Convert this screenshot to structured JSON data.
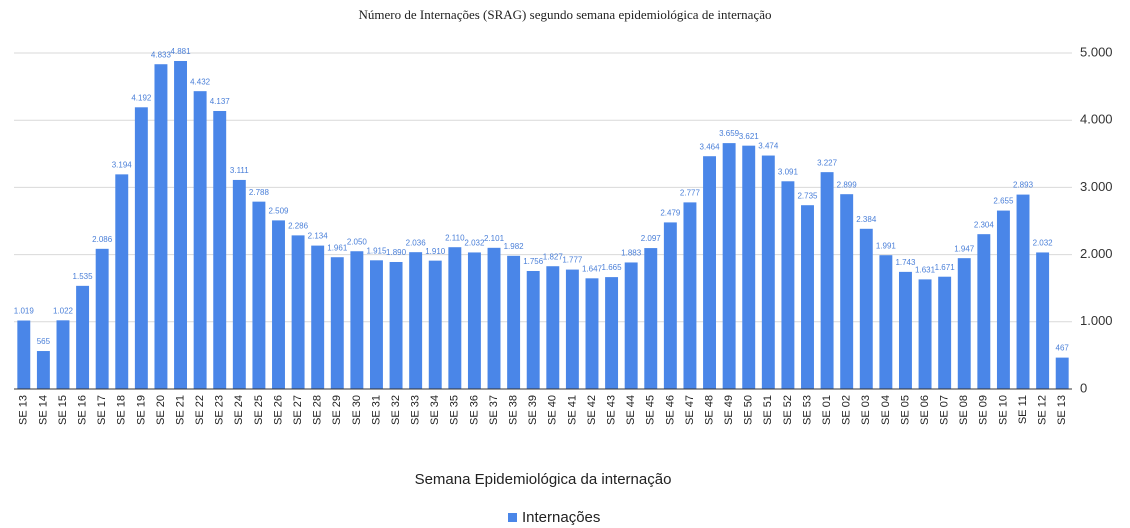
{
  "chart_data": {
    "type": "bar",
    "title": "Número de Internações (SRAG) segundo semana epidemiológica de internação",
    "x_label": "Semana Epidemiológica da internação",
    "categories": [
      "SE 13",
      "SE 14",
      "SE 15",
      "SE 16",
      "SE 17",
      "SE 18",
      "SE 19",
      "SE 20",
      "SE 21",
      "SE 22",
      "SE 23",
      "SE 24",
      "SE 25",
      "SE 26",
      "SE 27",
      "SE 28",
      "SE 29",
      "SE 30",
      "SE 31",
      "SE 32",
      "SE 33",
      "SE 34",
      "SE 35",
      "SE 36",
      "SE 37",
      "SE 38",
      "SE 39",
      "SE 40",
      "SE 41",
      "SE 42",
      "SE 43",
      "SE 44",
      "SE 45",
      "SE 46",
      "SE 47",
      "SE 48",
      "SE 49",
      "SE 50",
      "SE 51",
      "SE 52",
      "SE 53",
      "SE 01",
      "SE 02",
      "SE 03",
      "SE 04",
      "SE 05",
      "SE 06",
      "SE 07",
      "SE 08",
      "SE 09",
      "SE 10",
      "SE 11",
      "SE 12",
      "SE 13"
    ],
    "series": [
      {
        "name": "Internações",
        "color": "#4a86e8",
        "values": [
          1019,
          565,
          1022,
          1535,
          2086,
          3194,
          4192,
          4833,
          4881,
          4432,
          4137,
          3111,
          2788,
          2509,
          2286,
          2134,
          1961,
          2050,
          1915,
          1890,
          2036,
          1910,
          2110,
          2032,
          2101,
          1982,
          1756,
          1827,
          1777,
          1647,
          1665,
          1883,
          2097,
          2479,
          2777,
          3464,
          3659,
          3621,
          3474,
          3091,
          2735,
          3227,
          2899,
          2384,
          1991,
          1743,
          1631,
          1671,
          1947,
          2304,
          2655,
          2893,
          2032,
          467
        ],
        "value_labels": [
          "1.019",
          "565",
          "1.022",
          "1.535",
          "2.086",
          "3.194",
          "4.192",
          "4.833",
          "4.881",
          "4.432",
          "4.137",
          "3.111",
          "2.788",
          "2.509",
          "2.286",
          "2.134",
          "1.961",
          "2.050",
          "1.915",
          "1.890",
          "2.036",
          "1.910",
          "2.110",
          "2.032",
          "2.101",
          "1.982",
          "1.756",
          "1.827",
          "1.777",
          "1.647",
          "1.665",
          "1.883",
          "2.097",
          "2.479",
          "2.777",
          "3.464",
          "3.659",
          "3.621",
          "3.474",
          "3.091",
          "2.735",
          "3.227",
          "2.899",
          "2.384",
          "1.991",
          "1.743",
          "1.631",
          "1.671",
          "1.947",
          "2.304",
          "2.655",
          "2.893",
          "2.032",
          "467"
        ]
      }
    ],
    "ylim": [
      0,
      5000
    ],
    "yticks": [
      0,
      {
        "value": 1000,
        "label": "1.000"
      },
      {
        "value": 2000,
        "label": "2.000"
      },
      {
        "value": 3000,
        "label": "3.000"
      },
      {
        "value": 4000,
        "label": "4.000"
      },
      {
        "value": 5000,
        "label": "5.000"
      }
    ],
    "grid": true,
    "legend": "bottom"
  }
}
